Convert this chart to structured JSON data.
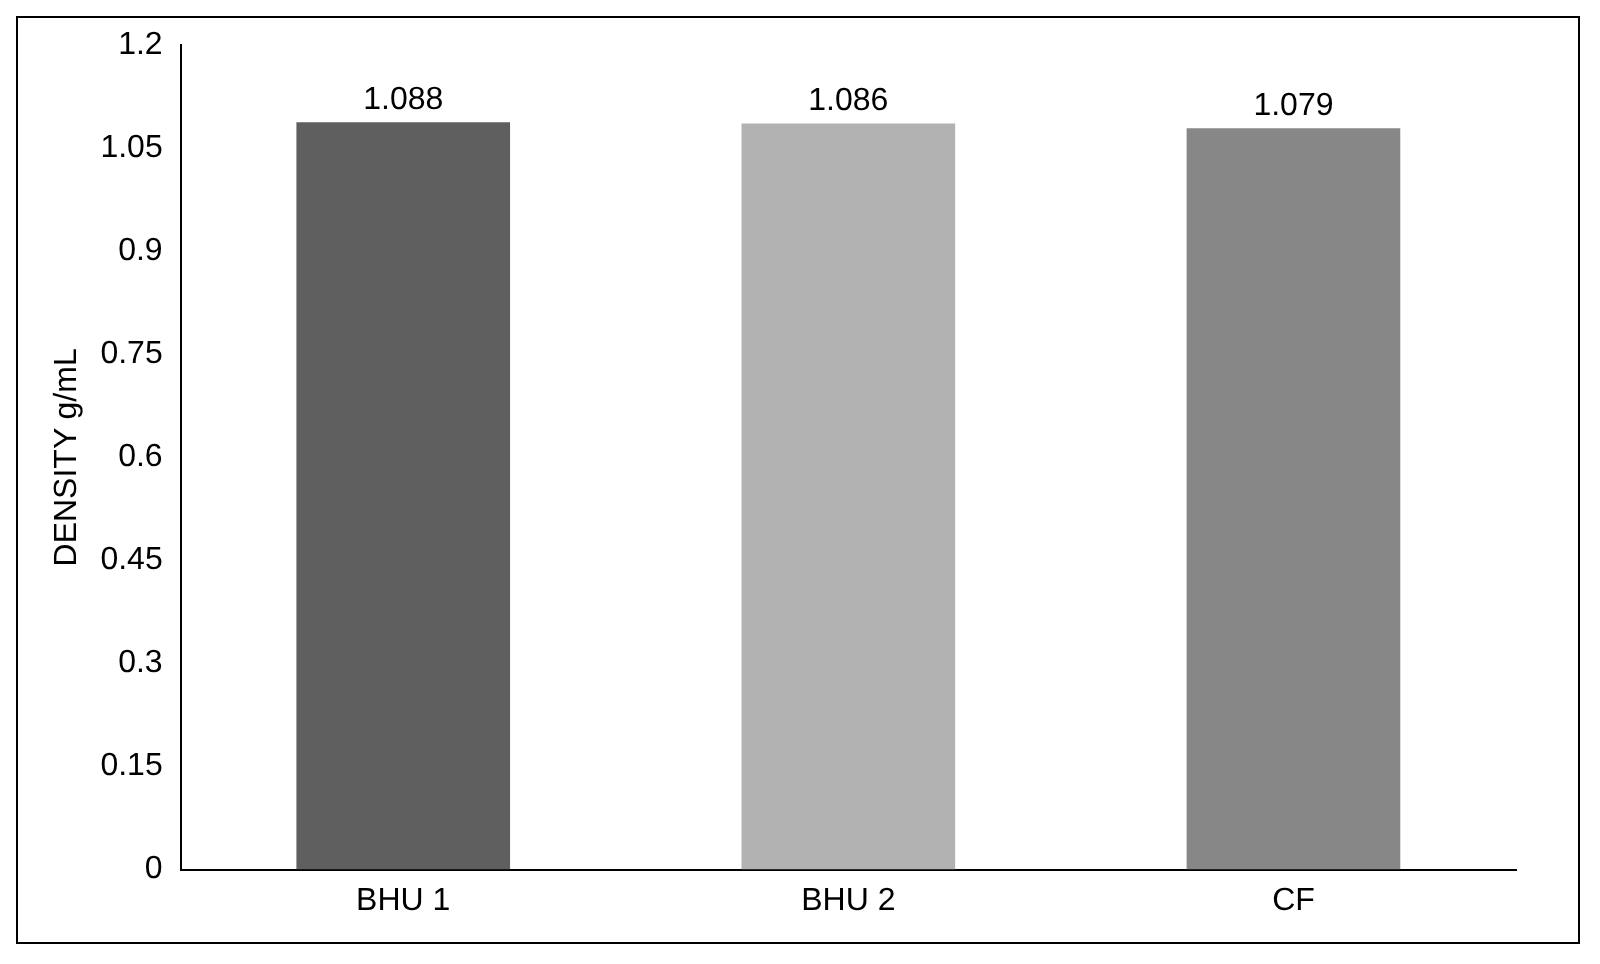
{
  "chart_data": {
    "type": "bar",
    "ylabel": "DENSITY g/mL",
    "categories": [
      "BHU 1",
      "BHU 2",
      "CF"
    ],
    "values": [
      1.088,
      1.086,
      1.079
    ],
    "colors": [
      "#5f5f5f",
      "#b2b2b2",
      "#878787"
    ],
    "ylim": [
      0,
      1.2
    ],
    "yticks": [
      0,
      0.15,
      0.3,
      0.45,
      0.6,
      0.75,
      0.9,
      1.05,
      1.2
    ],
    "grid": false,
    "legend": false,
    "data_labels": true
  }
}
